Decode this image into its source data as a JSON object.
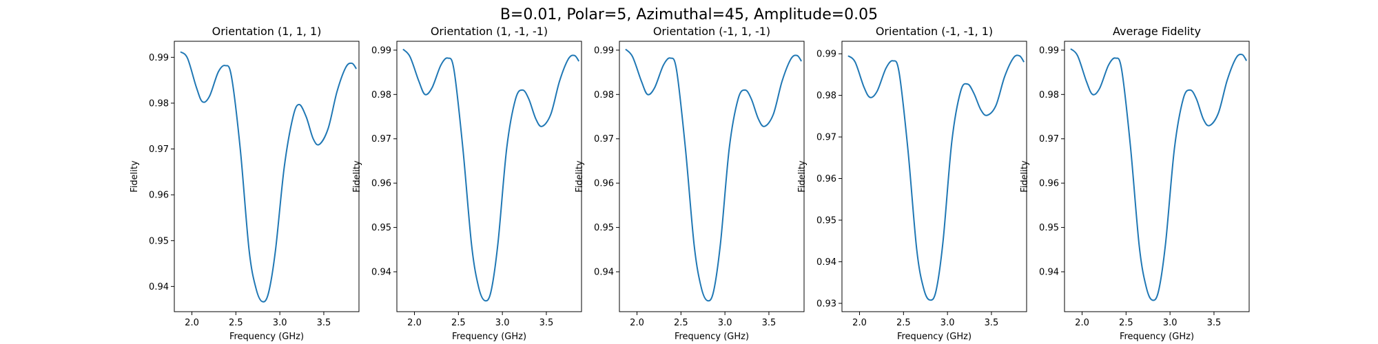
{
  "figure": {
    "title": "B=0.01, Polar=5, Azimuthal=45, Amplitude=0.05"
  },
  "chart_data": [
    {
      "type": "line",
      "title": "Orientation (1, 1, 1)",
      "xlabel": "Frequency (GHz)",
      "ylabel": "Fidelity",
      "xlim": [
        1.8,
        3.9
      ],
      "ylim": [
        0.9345,
        0.9935
      ],
      "xticks": [
        2.0,
        2.5,
        3.0,
        3.5
      ],
      "xtick_labels": [
        "2.0",
        "2.5",
        "3.0",
        "3.5"
      ],
      "yticks": [
        0.94,
        0.95,
        0.96,
        0.97,
        0.98,
        0.99
      ],
      "ytick_labels": [
        "0.94",
        "0.95",
        "0.96",
        "0.97",
        "0.98",
        "0.99"
      ],
      "grid": false,
      "series": [
        {
          "x": [
            1.87,
            1.95,
            2.05,
            2.12,
            2.2,
            2.3,
            2.38,
            2.45,
            2.55,
            2.65,
            2.73,
            2.8,
            2.87,
            2.95,
            3.05,
            3.15,
            3.22,
            3.3,
            3.38,
            3.45,
            3.55,
            3.65,
            3.75,
            3.82,
            3.87
          ],
          "y": [
            0.9912,
            0.9898,
            0.9835,
            0.9803,
            0.9815,
            0.9868,
            0.9882,
            0.9858,
            0.97,
            0.948,
            0.9395,
            0.9367,
            0.9385,
            0.9478,
            0.966,
            0.977,
            0.9797,
            0.977,
            0.9722,
            0.971,
            0.9745,
            0.9825,
            0.9878,
            0.9887,
            0.9875
          ]
        }
      ]
    },
    {
      "type": "line",
      "title": "Orientation (1, -1, -1)",
      "xlabel": "Frequency (GHz)",
      "ylabel": "Fidelity",
      "xlim": [
        1.8,
        3.9
      ],
      "ylim": [
        0.931,
        0.992
      ],
      "xticks": [
        2.0,
        2.5,
        3.0,
        3.5
      ],
      "xtick_labels": [
        "2.0",
        "2.5",
        "3.0",
        "3.5"
      ],
      "yticks": [
        0.94,
        0.95,
        0.96,
        0.97,
        0.98,
        0.99
      ],
      "ytick_labels": [
        "0.94",
        "0.95",
        "0.96",
        "0.97",
        "0.98",
        "0.99"
      ],
      "grid": false,
      "series": [
        {
          "x": [
            1.87,
            1.95,
            2.05,
            2.12,
            2.2,
            2.3,
            2.38,
            2.45,
            2.55,
            2.65,
            2.73,
            2.8,
            2.87,
            2.95,
            3.05,
            3.15,
            3.23,
            3.3,
            3.38,
            3.45,
            3.55,
            3.65,
            3.75,
            3.82,
            3.87
          ],
          "y": [
            0.9902,
            0.9885,
            0.983,
            0.98,
            0.9815,
            0.9866,
            0.9882,
            0.9855,
            0.968,
            0.946,
            0.9365,
            0.9335,
            0.9355,
            0.9465,
            0.968,
            0.979,
            0.981,
            0.979,
            0.9745,
            0.9728,
            0.9755,
            0.983,
            0.988,
            0.9888,
            0.9875
          ]
        }
      ]
    },
    {
      "type": "line",
      "title": "Orientation (-1, 1, -1)",
      "xlabel": "Frequency (GHz)",
      "ylabel": "Fidelity",
      "xlim": [
        1.8,
        3.9
      ],
      "ylim": [
        0.931,
        0.992
      ],
      "xticks": [
        2.0,
        2.5,
        3.0,
        3.5
      ],
      "xtick_labels": [
        "2.0",
        "2.5",
        "3.0",
        "3.5"
      ],
      "yticks": [
        0.94,
        0.95,
        0.96,
        0.97,
        0.98,
        0.99
      ],
      "ytick_labels": [
        "0.94",
        "0.95",
        "0.96",
        "0.97",
        "0.98",
        "0.99"
      ],
      "grid": false,
      "series": [
        {
          "x": [
            1.87,
            1.95,
            2.05,
            2.12,
            2.2,
            2.3,
            2.38,
            2.45,
            2.55,
            2.65,
            2.73,
            2.8,
            2.87,
            2.95,
            3.05,
            3.15,
            3.23,
            3.3,
            3.38,
            3.45,
            3.55,
            3.65,
            3.75,
            3.82,
            3.87
          ],
          "y": [
            0.9902,
            0.9885,
            0.983,
            0.98,
            0.9815,
            0.9866,
            0.9882,
            0.9855,
            0.968,
            0.946,
            0.9365,
            0.9335,
            0.9355,
            0.9465,
            0.968,
            0.979,
            0.981,
            0.979,
            0.9745,
            0.9728,
            0.9755,
            0.983,
            0.988,
            0.9888,
            0.9875
          ]
        }
      ]
    },
    {
      "type": "line",
      "title": "Orientation (-1, -1, 1)",
      "xlabel": "Frequency (GHz)",
      "ylabel": "Fidelity",
      "xlim": [
        1.8,
        3.9
      ],
      "ylim": [
        0.928,
        0.993
      ],
      "xticks": [
        2.0,
        2.5,
        3.0,
        3.5
      ],
      "xtick_labels": [
        "2.0",
        "2.5",
        "3.0",
        "3.5"
      ],
      "yticks": [
        0.93,
        0.94,
        0.95,
        0.96,
        0.97,
        0.98,
        0.99
      ],
      "ytick_labels": [
        "0.93",
        "0.94",
        "0.95",
        "0.96",
        "0.97",
        "0.98",
        "0.99"
      ],
      "grid": false,
      "series": [
        {
          "x": [
            1.87,
            1.95,
            2.05,
            2.12,
            2.2,
            2.3,
            2.38,
            2.45,
            2.55,
            2.65,
            2.73,
            2.8,
            2.87,
            2.95,
            3.05,
            3.15,
            3.23,
            3.3,
            3.38,
            3.45,
            3.55,
            3.65,
            3.75,
            3.82,
            3.87
          ],
          "y": [
            0.9895,
            0.988,
            0.982,
            0.9795,
            0.981,
            0.9865,
            0.9883,
            0.9855,
            0.967,
            0.943,
            0.9335,
            0.9308,
            0.933,
            0.945,
            0.969,
            0.981,
            0.9827,
            0.9805,
            0.9765,
            0.9752,
            0.9775,
            0.9845,
            0.989,
            0.9895,
            0.988
          ]
        }
      ]
    },
    {
      "type": "line",
      "title": "Average Fidelity",
      "xlabel": "Frequency (GHz)",
      "ylabel": "Fidelity",
      "xlim": [
        1.8,
        3.9
      ],
      "ylim": [
        0.931,
        0.992
      ],
      "xticks": [
        2.0,
        2.5,
        3.0,
        3.5
      ],
      "xtick_labels": [
        "2.0",
        "2.5",
        "3.0",
        "3.5"
      ],
      "yticks": [
        0.94,
        0.95,
        0.96,
        0.97,
        0.98,
        0.99
      ],
      "ytick_labels": [
        "0.94",
        "0.95",
        "0.96",
        "0.97",
        "0.98",
        "0.99"
      ],
      "grid": false,
      "series": [
        {
          "x": [
            1.87,
            1.95,
            2.05,
            2.12,
            2.2,
            2.3,
            2.38,
            2.45,
            2.55,
            2.65,
            2.73,
            2.8,
            2.87,
            2.95,
            3.05,
            3.15,
            3.23,
            3.3,
            3.38,
            3.45,
            3.55,
            3.65,
            3.75,
            3.82,
            3.87
          ],
          "y": [
            0.9903,
            0.9887,
            0.9829,
            0.98,
            0.9814,
            0.9866,
            0.9882,
            0.9856,
            0.9683,
            0.9458,
            0.9365,
            0.9336,
            0.9357,
            0.9465,
            0.9678,
            0.979,
            0.981,
            0.979,
            0.9744,
            0.973,
            0.9758,
            0.9832,
            0.9882,
            0.989,
            0.9876
          ]
        }
      ]
    }
  ]
}
